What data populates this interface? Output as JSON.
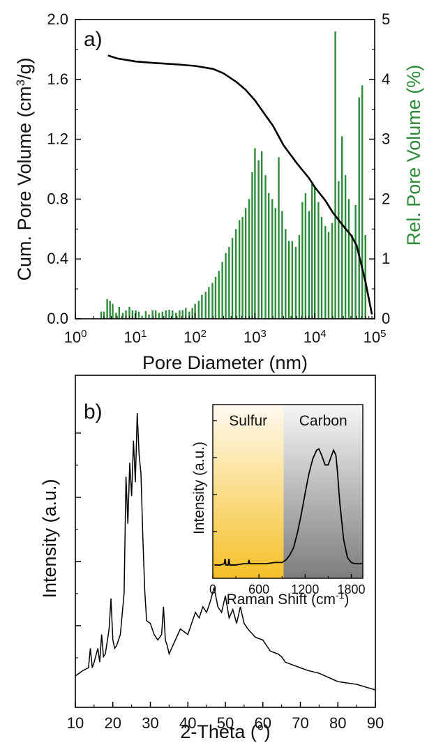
{
  "chart_data": [
    {
      "panel_label": "a)",
      "type": "line+bar",
      "xlabel": "Pore Diameter (nm)",
      "xscale": "log",
      "xlim": [
        1,
        100000
      ],
      "x_tick_labels": [
        {
          "base": "10",
          "exp": "0",
          "value": 1
        },
        {
          "base": "10",
          "exp": "1",
          "value": 10
        },
        {
          "base": "10",
          "exp": "2",
          "value": 100
        },
        {
          "base": "10",
          "exp": "3",
          "value": 1000
        },
        {
          "base": "10",
          "exp": "4",
          "value": 10000
        },
        {
          "base": "10",
          "exp": "5",
          "value": 100000
        }
      ],
      "y_left": {
        "label_pre": "Cum. Pore Volume (cm",
        "label_sup": "3",
        "label_post": "/g)",
        "lim": [
          0,
          2.0
        ],
        "ticks": [
          "0.0",
          "0.4",
          "0.8",
          "1.2",
          "1.6",
          "2.0"
        ]
      },
      "y_right": {
        "label": "Rel. Pore Volume (%)",
        "lim": [
          0,
          5
        ],
        "ticks": [
          "0",
          "1",
          "2",
          "3",
          "4",
          "5"
        ],
        "color": "#2e8b3a"
      },
      "series": [
        {
          "type": "line",
          "axis": "left",
          "color": "#000000",
          "x": [
            3.5,
            5,
            10,
            20,
            50,
            100,
            200,
            300,
            500,
            700,
            1000,
            1500,
            2000,
            3000,
            5000,
            8000,
            10000,
            15000,
            20000,
            30000,
            40000,
            50000,
            70000,
            90000
          ],
          "y": [
            1.76,
            1.74,
            1.72,
            1.71,
            1.7,
            1.69,
            1.67,
            1.64,
            1.58,
            1.53,
            1.46,
            1.36,
            1.29,
            1.16,
            1.04,
            0.94,
            0.88,
            0.79,
            0.71,
            0.62,
            0.56,
            0.49,
            0.25,
            0.03
          ]
        },
        {
          "type": "bar",
          "axis": "right",
          "color": "#2e8b3a",
          "x": [
            2.7,
            3.0,
            3.4,
            3.8,
            4.2,
            4.8,
            5.4,
            6.2,
            7.0,
            8.0,
            9.0,
            10.2,
            11.5,
            13.0,
            15.0,
            17.0,
            19.5,
            22.0,
            25.0,
            28.5,
            32.5,
            37.0,
            42.0,
            48.0,
            55.0,
            62.0,
            70.0,
            80.0,
            90.0,
            100.0,
            115,
            130,
            150,
            170,
            195,
            220,
            250,
            285,
            325,
            370,
            420,
            480,
            550,
            620,
            700,
            800,
            900,
            1000,
            1150,
            1300,
            1500,
            1700,
            1950,
            2200,
            2500,
            2850,
            3250,
            3700,
            4200,
            4800,
            5500,
            6200,
            7000,
            8000,
            9000,
            10000,
            11500,
            13000,
            15000,
            17000,
            19500,
            22000,
            25000,
            28500,
            32500,
            37000,
            42000,
            48000,
            55000,
            62000,
            70000
          ],
          "y": [
            0.12,
            0.12,
            0.33,
            0.3,
            0.25,
            0.1,
            0.2,
            0.1,
            0.14,
            0.2,
            0.14,
            0.14,
            0.12,
            0.05,
            0.13,
            0.07,
            0.14,
            0.14,
            0.1,
            0.12,
            0.14,
            0.15,
            0.14,
            0.1,
            0.14,
            0.14,
            0.18,
            0.12,
            0.18,
            0.25,
            0.3,
            0.4,
            0.45,
            0.53,
            0.6,
            0.7,
            0.8,
            0.95,
            1.1,
            1.2,
            1.35,
            1.5,
            1.65,
            1.7,
            1.85,
            2.0,
            2.45,
            2.85,
            2.65,
            2.8,
            2.4,
            2.1,
            2.0,
            1.85,
            2.7,
            1.8,
            1.5,
            1.3,
            1.3,
            1.2,
            1.4,
            1.95,
            2.1,
            1.8,
            2.25,
            2.2,
            1.95,
            1.7,
            1.55,
            1.45,
            1.6,
            4.8,
            2.3,
            3.05,
            2.4,
            2.0,
            1.4,
            1.9,
            3.7,
            3.9,
            1.4
          ]
        }
      ]
    },
    {
      "panel_label": "b)",
      "type": "line",
      "xlabel": "2-Theta (°)",
      "ylabel": "Intensity (a.u.)",
      "xlim": [
        10,
        90
      ],
      "x_ticks": [
        "10",
        "20",
        "30",
        "40",
        "50",
        "60",
        "70",
        "80",
        "90"
      ],
      "y_tick_labels": false,
      "series": [
        {
          "color": "#000000",
          "x": [
            10,
            12,
            13.5,
            14,
            14.5,
            15,
            16,
            16.5,
            17,
            17.5,
            18,
            19,
            19.5,
            20,
            20.5,
            21,
            22,
            23,
            23.5,
            24,
            24.5,
            25,
            25.5,
            26,
            26.5,
            27,
            27.5,
            28,
            28.5,
            29,
            30,
            31,
            32,
            33,
            33.5,
            34,
            34.5,
            35,
            36,
            38,
            40,
            41,
            42,
            43,
            44,
            45,
            46,
            47,
            48,
            49,
            50,
            51,
            52,
            53,
            54,
            55,
            56,
            58,
            60,
            62,
            64,
            65,
            66,
            68,
            70,
            72,
            75,
            80,
            85,
            90
          ],
          "y": [
            0.05,
            0.07,
            0.08,
            0.15,
            0.08,
            0.1,
            0.15,
            0.1,
            0.2,
            0.12,
            0.13,
            0.22,
            0.33,
            0.18,
            0.15,
            0.16,
            0.2,
            0.35,
            0.77,
            0.6,
            0.82,
            0.7,
            0.9,
            0.75,
            1.0,
            0.85,
            0.78,
            0.55,
            0.36,
            0.25,
            0.24,
            0.2,
            0.18,
            0.2,
            0.3,
            0.18,
            0.16,
            0.13,
            0.16,
            0.22,
            0.2,
            0.24,
            0.28,
            0.26,
            0.3,
            0.28,
            0.32,
            0.37,
            0.3,
            0.28,
            0.34,
            0.26,
            0.29,
            0.24,
            0.3,
            0.24,
            0.22,
            0.19,
            0.18,
            0.14,
            0.13,
            0.12,
            0.1,
            0.09,
            0.08,
            0.07,
            0.06,
            0.03,
            0.02,
            0.0
          ]
        }
      ],
      "inset": {
        "type": "line",
        "xlabel_pre": "Raman Shift (cm",
        "xlabel_sup": "-1",
        "xlabel_post": ")",
        "ylabel": "Intensity (a.u.)",
        "xlim": [
          0,
          1950
        ],
        "x_ticks": [
          {
            "label": "0",
            "value": 0
          },
          {
            "label": "600",
            "value": 600
          },
          {
            "label": "1200",
            "value": 1200
          },
          {
            "label": "1800",
            "value": 1800
          }
        ],
        "regions": [
          {
            "label": "Sulfur",
            "from": 0,
            "to": 920,
            "color": "#f5c028"
          },
          {
            "label": "Carbon",
            "from": 920,
            "to": 1950,
            "color": "#8c8c8c"
          }
        ],
        "series": [
          {
            "color": "#000000",
            "x": [
              20,
              100,
              150,
              160,
              170,
              200,
              210,
              220,
              260,
              300,
              400,
              460,
              470,
              480,
              500,
              600,
              700,
              800,
              900,
              950,
              1000,
              1050,
              1100,
              1150,
              1200,
              1250,
              1300,
              1350,
              1380,
              1420,
              1460,
              1500,
              1540,
              1570,
              1600,
              1620,
              1650,
              1700,
              1750,
              1800,
              1850,
              1900,
              1950
            ],
            "y": [
              0.04,
              0.04,
              0.05,
              0.09,
              0.04,
              0.04,
              0.09,
              0.04,
              0.04,
              0.04,
              0.05,
              0.05,
              0.08,
              0.05,
              0.05,
              0.05,
              0.05,
              0.06,
              0.06,
              0.08,
              0.12,
              0.18,
              0.3,
              0.45,
              0.62,
              0.78,
              0.9,
              0.97,
              0.98,
              0.92,
              0.85,
              0.85,
              0.92,
              0.97,
              0.93,
              0.8,
              0.55,
              0.25,
              0.1,
              0.06,
              0.05,
              0.05,
              0.05
            ]
          }
        ]
      }
    }
  ]
}
